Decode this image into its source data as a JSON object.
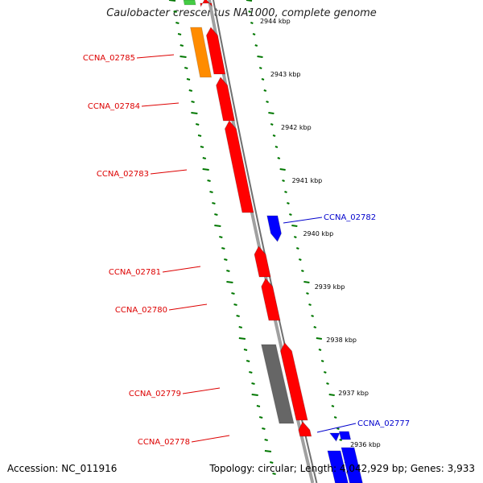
{
  "title": "Caulobacter crescentus NA1000, complete genome",
  "footer": {
    "accession": "Accession: NC_011916",
    "stats": "Topology: circular; Length: 4,042,929 bp; Genes: 3,933"
  },
  "colors": {
    "forward_gene": "#ff0000",
    "reverse_gene": "#0000ff",
    "orange_feature": "#ff8c00",
    "gray_feature": "#666666",
    "green_feature": "#44cc44",
    "backbone": "#808080",
    "ticks": "#007700",
    "label_red": "#dd0000",
    "label_blue": "#0000cc"
  },
  "ticks": [
    {
      "id": "t2936",
      "label": "2936 kbp"
    },
    {
      "id": "t2937",
      "label": "2937 kbp"
    },
    {
      "id": "t2938",
      "label": "2938 kbp"
    },
    {
      "id": "t2939",
      "label": "2939 kbp"
    },
    {
      "id": "t2940",
      "label": "2940 kbp"
    },
    {
      "id": "t2941",
      "label": "2941 kbp"
    },
    {
      "id": "t2942",
      "label": "2942 kbp"
    },
    {
      "id": "t2943",
      "label": "2943 kbp"
    },
    {
      "id": "t2944",
      "label": "2944 kbp"
    }
  ],
  "genes": [
    {
      "id": "g02785",
      "label": "CCNA_02785",
      "strand": "forward",
      "color": "red"
    },
    {
      "id": "g02784",
      "label": "CCNA_02784",
      "strand": "forward",
      "color": "red"
    },
    {
      "id": "g02783",
      "label": "CCNA_02783",
      "strand": "forward",
      "color": "red"
    },
    {
      "id": "g02782",
      "label": "CCNA_02782",
      "strand": "reverse",
      "color": "blue"
    },
    {
      "id": "g02781",
      "label": "CCNA_02781",
      "strand": "forward",
      "color": "red"
    },
    {
      "id": "g02780",
      "label": "CCNA_02780",
      "strand": "forward",
      "color": "red"
    },
    {
      "id": "g02779",
      "label": "CCNA_02779",
      "strand": "forward",
      "color": "red"
    },
    {
      "id": "g02778",
      "label": "CCNA_02778",
      "strand": "forward",
      "color": "red"
    },
    {
      "id": "g02777",
      "label": "CCNA_02777",
      "strand": "reverse",
      "color": "blue"
    }
  ]
}
